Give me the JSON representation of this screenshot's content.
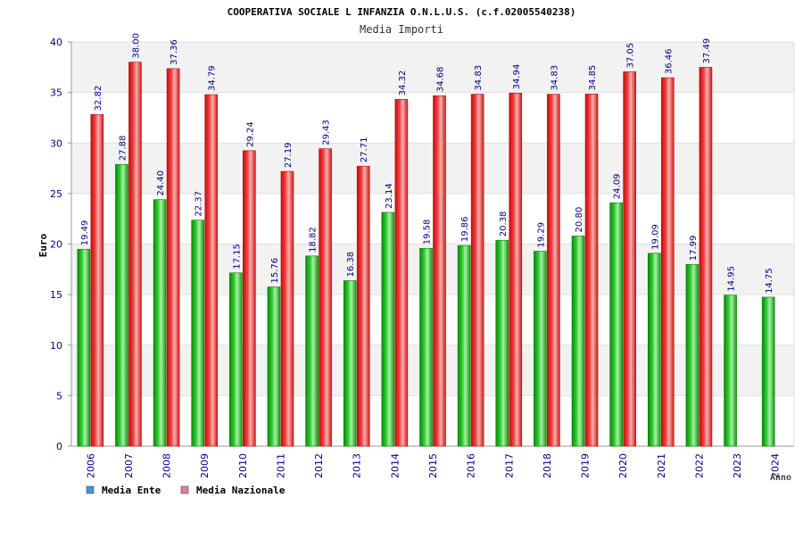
{
  "chart_data": {
    "type": "bar",
    "title": "COOPERATIVA SOCIALE L INFANZIA O.N.L.U.S. (c.f.02005540238)",
    "subtitle": "Media Importi",
    "xlabel": "Anno",
    "ylabel": "Euro",
    "ylim": [
      0,
      40
    ],
    "yticks": [
      "0",
      "5",
      "10",
      "15",
      "20",
      "25",
      "30",
      "35",
      "40"
    ],
    "grid": true,
    "legend_position": "bottom-left",
    "categories": [
      "2006",
      "2007",
      "2008",
      "2009",
      "2010",
      "2011",
      "2012",
      "2013",
      "2014",
      "2015",
      "2016",
      "2017",
      "2018",
      "2019",
      "2020",
      "2021",
      "2022",
      "2023",
      "2024"
    ],
    "series": [
      {
        "name": "Media Ente",
        "color": "#22bb22",
        "legend_color": "#4a90e2",
        "values": [
          19.49,
          27.88,
          24.4,
          22.37,
          17.15,
          15.76,
          18.82,
          16.38,
          23.14,
          19.58,
          19.86,
          20.38,
          19.29,
          20.8,
          24.09,
          19.09,
          17.99,
          14.95,
          14.75
        ],
        "labels": [
          "19.49",
          "27.88",
          "24.40",
          "22.37",
          "17.15",
          "15.76",
          "18.82",
          "16.38",
          "23.14",
          "19.58",
          "19.86",
          "20.38",
          "19.29",
          "20.80",
          "24.09",
          "19.09",
          "17.99",
          "14.95",
          "14.75"
        ]
      },
      {
        "name": "Media Nazionale",
        "color": "#ee2222",
        "legend_color": "#e07aa8",
        "values": [
          32.82,
          38.0,
          37.36,
          34.79,
          29.24,
          27.19,
          29.43,
          27.71,
          34.32,
          34.68,
          34.83,
          34.94,
          34.83,
          34.85,
          37.05,
          36.46,
          37.49,
          null,
          null
        ],
        "labels": [
          "32.82",
          "38.00",
          "37.36",
          "34.79",
          "29.24",
          "27.19",
          "29.43",
          "27.71",
          "34.32",
          "34.68",
          "34.83",
          "34.94",
          "34.83",
          "34.85",
          "37.05",
          "36.46",
          "37.49",
          null,
          null
        ]
      }
    ]
  }
}
